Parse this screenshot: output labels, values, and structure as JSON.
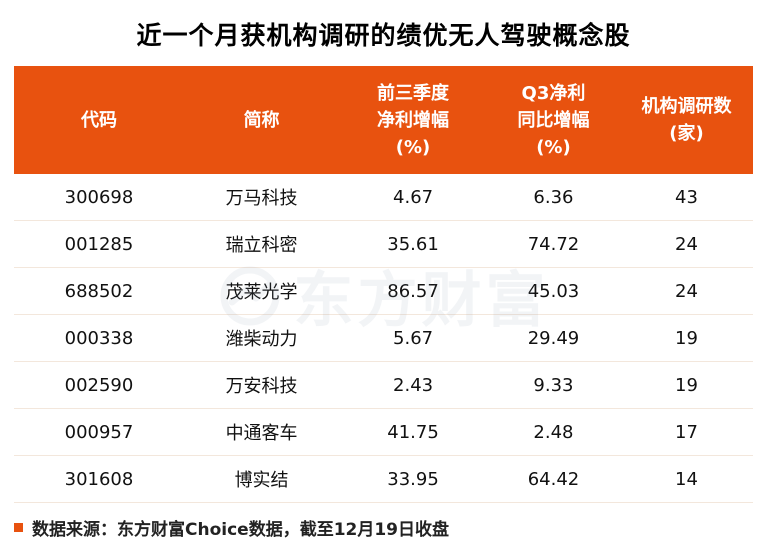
{
  "title": "近一个月获机构调研的绩优无人驾驶概念股",
  "colors": {
    "header_bg": "#e8520f",
    "header_text": "#ffffff",
    "row_divider": "#f3e7dc",
    "title_text": "#000000",
    "footer_marker": "#e8520f"
  },
  "watermark": {
    "text": "东方财富"
  },
  "footer": {
    "text": "数据来源：东方财富Choice数据，截至12月19日收盘"
  },
  "chart_data": {
    "type": "table",
    "title": "近一个月获机构调研的绩优无人驾驶概念股",
    "columns": [
      "代码",
      "简称",
      "前三季度\n净利增幅\n(%)",
      "Q3净利\n同比增幅\n(%)",
      "机构调研数\n(家)"
    ],
    "column_keys": [
      "code",
      "name",
      "net_profit_growth_first_three_quarters_pct",
      "q3_net_profit_yoy_growth_pct",
      "institution_survey_count"
    ],
    "rows": [
      [
        "300698",
        "万马科技",
        "4.67",
        "6.36",
        "43"
      ],
      [
        "001285",
        "瑞立科密",
        "35.61",
        "74.72",
        "24"
      ],
      [
        "688502",
        "茂莱光学",
        "86.57",
        "45.03",
        "24"
      ],
      [
        "000338",
        "潍柴动力",
        "5.67",
        "29.49",
        "19"
      ],
      [
        "002590",
        "万安科技",
        "2.43",
        "9.33",
        "19"
      ],
      [
        "000957",
        "中通客车",
        "41.75",
        "2.48",
        "17"
      ],
      [
        "301608",
        "博实结",
        "33.95",
        "64.42",
        "14"
      ]
    ]
  }
}
